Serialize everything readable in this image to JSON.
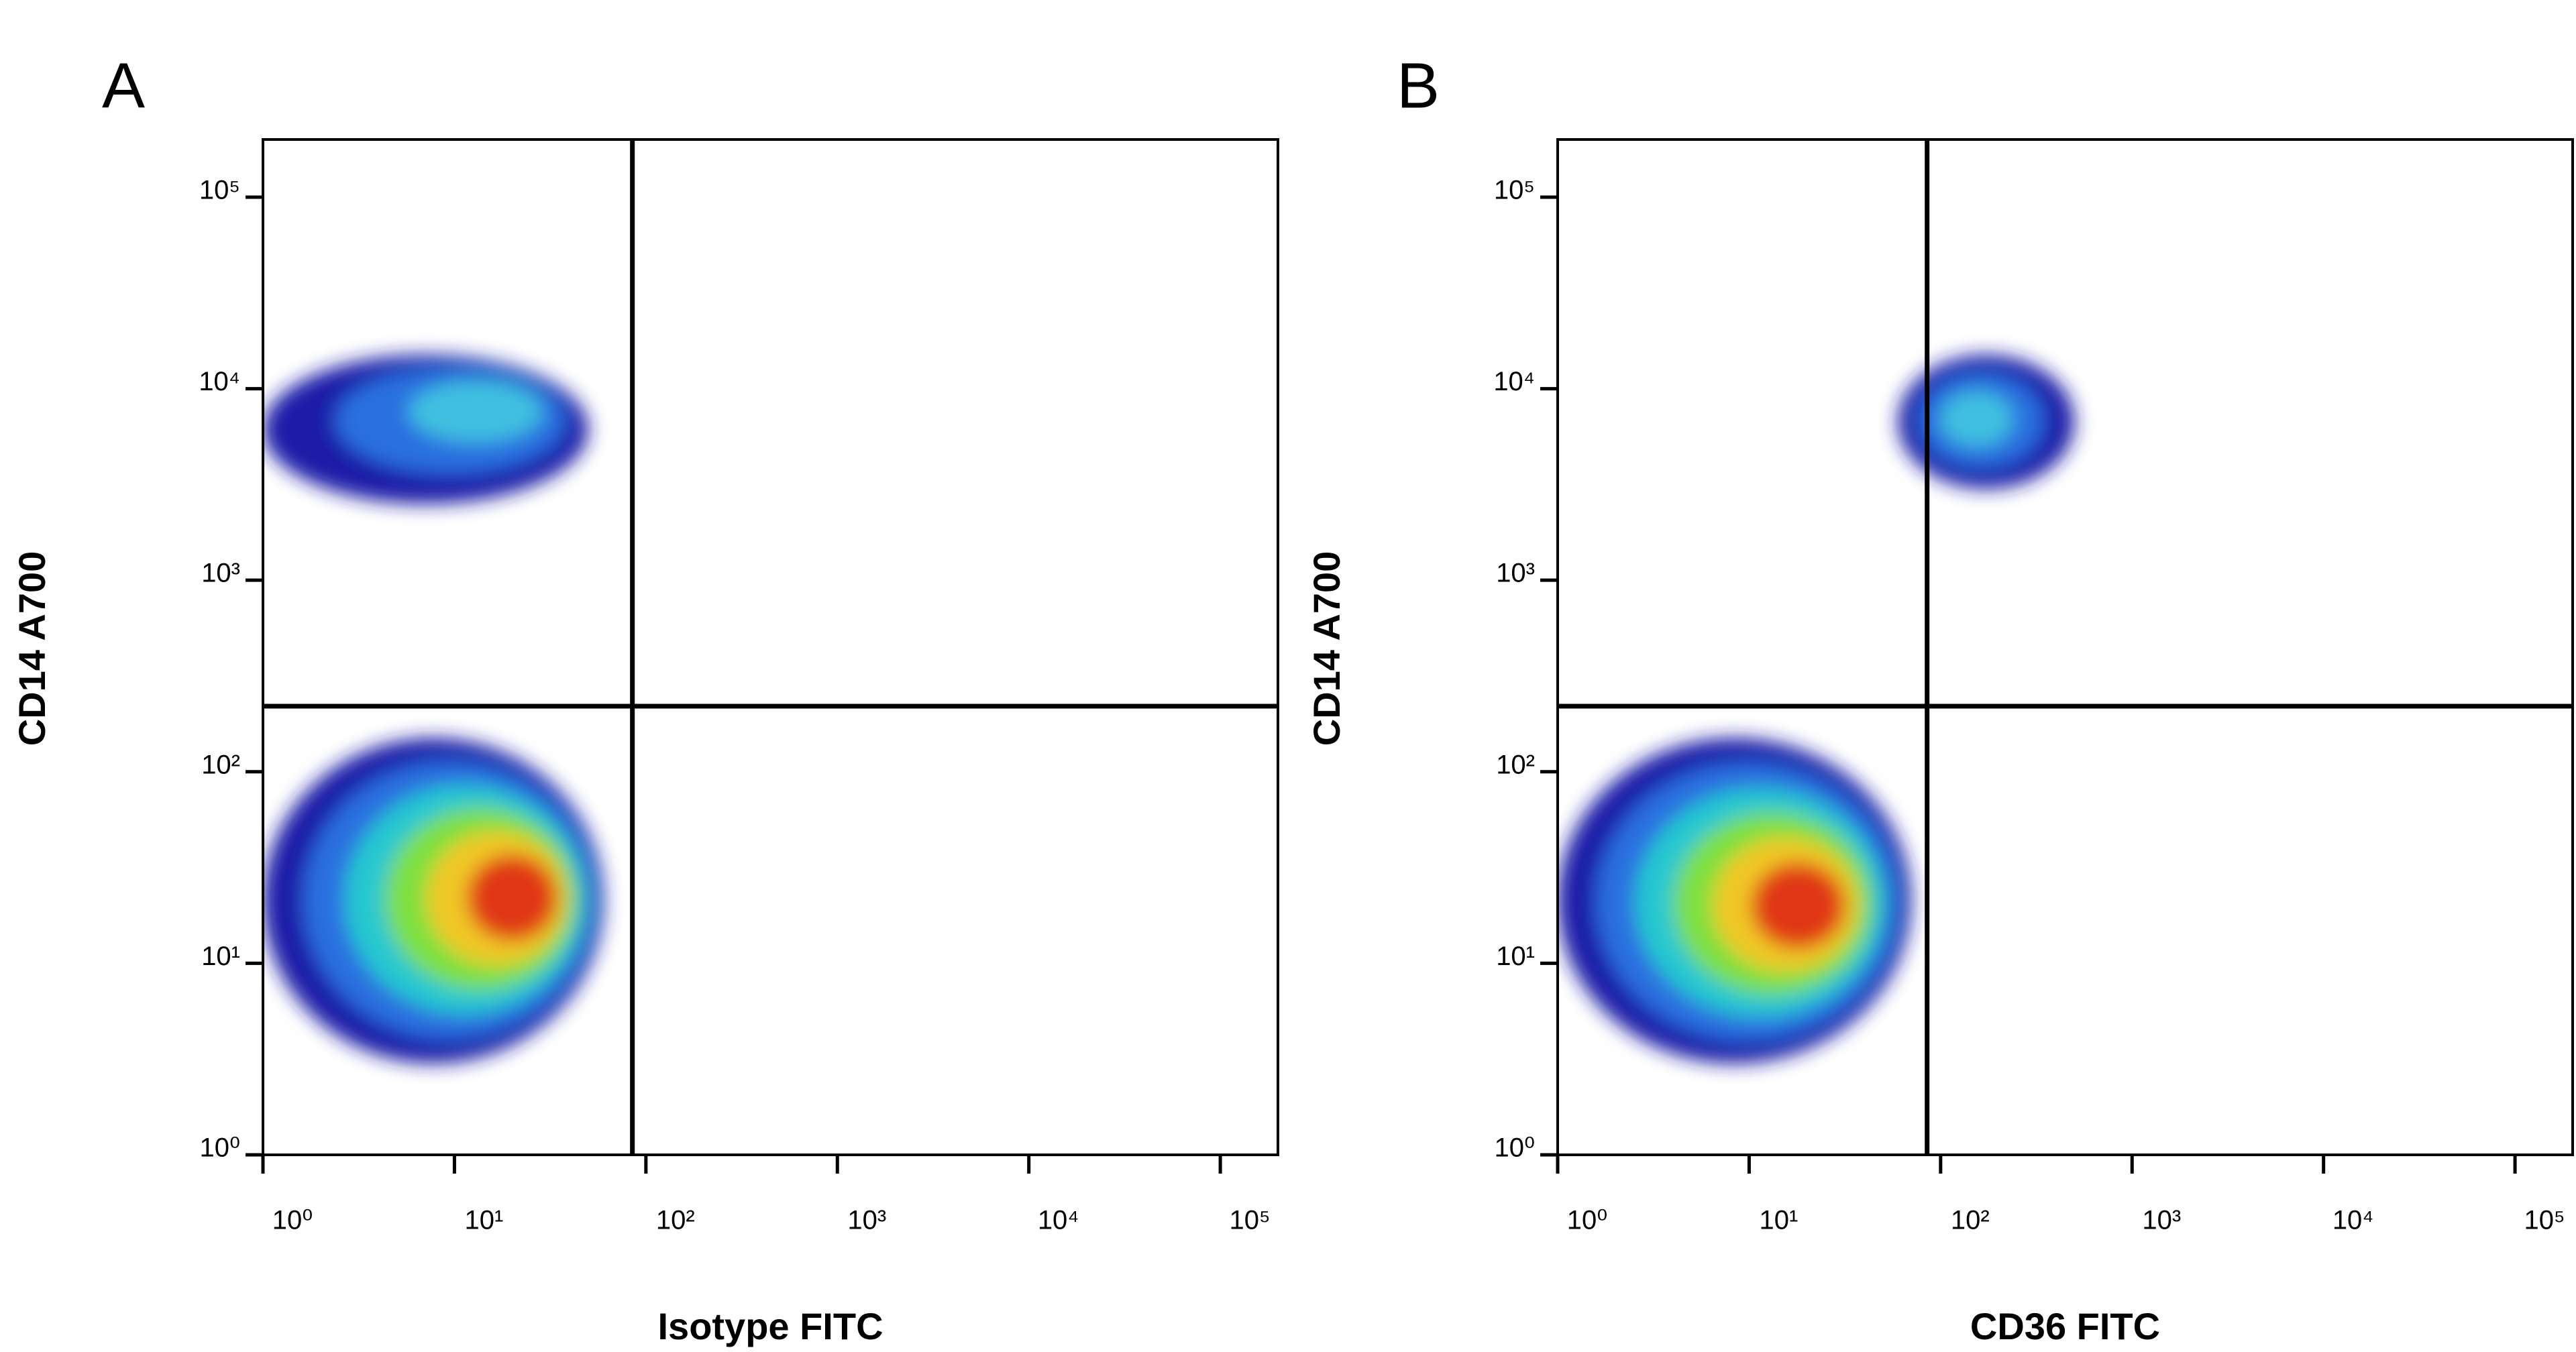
{
  "chart_data": [
    {
      "type": "density",
      "panel": "A",
      "x_label": "Isotype FITC",
      "y_label": "CD14 A700",
      "xscale": "log",
      "yscale": "log",
      "xlim": [
        1,
        200000
      ],
      "ylim": [
        1,
        200000
      ],
      "xticks": [
        {
          "value": 1,
          "label": "10⁰"
        },
        {
          "value": 10,
          "label": "10¹"
        },
        {
          "value": 100,
          "label": "10²"
        },
        {
          "value": 1000,
          "label": "10³"
        },
        {
          "value": 10000,
          "label": "10⁴"
        },
        {
          "value": 100000,
          "label": "10⁵"
        }
      ],
      "yticks": [
        {
          "value": 1,
          "label": "10⁰"
        },
        {
          "value": 10,
          "label": "10¹"
        },
        {
          "value": 100,
          "label": "10²"
        },
        {
          "value": 1000,
          "label": "10³"
        },
        {
          "value": 10000,
          "label": "10⁴"
        },
        {
          "value": 100000,
          "label": "10⁵"
        }
      ],
      "gates": {
        "x": 85,
        "y": 220
      },
      "populations": [
        {
          "x": [
            1,
            60
          ],
          "y": [
            3,
            150
          ],
          "peak": [
            20,
            22
          ],
          "colors": [
            "#1c1ca8",
            "#2a70e0",
            "#28c8d0",
            "#7ee040",
            "#f0c828",
            "#e03818"
          ]
        },
        {
          "x": [
            1,
            50
          ],
          "y": [
            2500,
            15000
          ],
          "peak": [
            15,
            8000
          ],
          "colors": [
            "#1c1ca8",
            "#2a70e0",
            "#40c0e0"
          ]
        }
      ]
    },
    {
      "type": "density",
      "panel": "B",
      "x_label": "CD36 FITC",
      "y_label": "CD14 A700",
      "xscale": "log",
      "yscale": "log",
      "xlim": [
        1,
        200000
      ],
      "ylim": [
        1,
        200000
      ],
      "xticks": [
        {
          "value": 1,
          "label": "10⁰"
        },
        {
          "value": 10,
          "label": "10¹"
        },
        {
          "value": 100,
          "label": "10²"
        },
        {
          "value": 1000,
          "label": "10³"
        },
        {
          "value": 10000,
          "label": "10⁴"
        },
        {
          "value": 100000,
          "label": "10⁵"
        }
      ],
      "yticks": [
        {
          "value": 1,
          "label": "10⁰"
        },
        {
          "value": 10,
          "label": "10¹"
        },
        {
          "value": 100,
          "label": "10²"
        },
        {
          "value": 1000,
          "label": "10³"
        },
        {
          "value": 10000,
          "label": "10⁴"
        },
        {
          "value": 100000,
          "label": "10⁵"
        }
      ],
      "gates": {
        "x": 85,
        "y": 220
      },
      "populations": [
        {
          "x": [
            1,
            70
          ],
          "y": [
            3,
            150
          ],
          "peak": [
            18,
            20
          ],
          "colors": [
            "#1c1ca8",
            "#2a70e0",
            "#28c8d0",
            "#7ee040",
            "#f0c828",
            "#e03818"
          ]
        },
        {
          "x": [
            60,
            500
          ],
          "y": [
            3000,
            15000
          ],
          "peak": [
            150,
            7000
          ],
          "colors": [
            "#1c1ca8",
            "#2a70e0",
            "#40c0e0"
          ]
        }
      ]
    }
  ]
}
